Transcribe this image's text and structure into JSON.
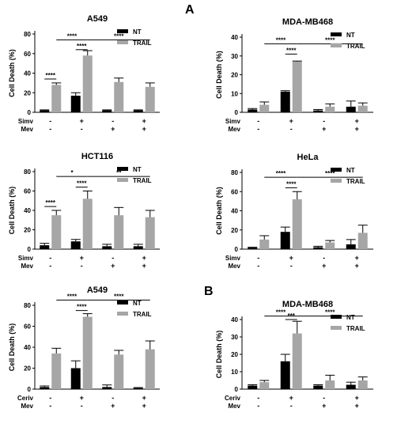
{
  "panel_labels": {
    "A": "A",
    "B": "B"
  },
  "colors": {
    "nt": "#000000",
    "trail": "#a6a6a6",
    "axis": "#000000"
  },
  "chart_data": [
    {
      "type": "bar",
      "title": "A549",
      "ylabel": "Cell Death (%)",
      "ylim": [
        0,
        80
      ],
      "yticks": [
        0,
        20,
        40,
        60,
        80
      ],
      "row_labels": [
        "Simv",
        "Mev"
      ],
      "conditions": [
        [
          "-",
          "-"
        ],
        [
          "+",
          "-"
        ],
        [
          "-",
          "+"
        ],
        [
          "+",
          "+"
        ]
      ],
      "legend": "top-right",
      "series": [
        {
          "name": "NT",
          "values": [
            2,
            17,
            2,
            2
          ],
          "errors": [
            0.5,
            3,
            0.5,
            0.5
          ]
        },
        {
          "name": "TRAIL",
          "values": [
            28,
            58,
            31,
            26
          ],
          "errors": [
            2,
            5,
            4,
            4
          ]
        }
      ],
      "sig_lines": [
        {
          "label": "****",
          "from": "0:NT",
          "to": "0:TRAIL",
          "y": 34
        },
        {
          "label": "****",
          "from": "1:NT",
          "to": "1:TRAIL",
          "y": 64
        },
        {
          "label": "****",
          "from": "0:TRAIL",
          "to": "1:TRAIL",
          "y": 74
        },
        {
          "label": "****",
          "from": "1:TRAIL",
          "to": "3:TRAIL",
          "y": 74
        }
      ]
    },
    {
      "type": "bar",
      "title": "MDA-MB468",
      "ylabel": "Cell Death (%)",
      "ylim": [
        0,
        40
      ],
      "yticks": [
        0,
        10,
        20,
        30,
        40
      ],
      "row_labels": [
        "Simv",
        "Mev"
      ],
      "conditions": [
        [
          "-",
          "-"
        ],
        [
          "+",
          "-"
        ],
        [
          "-",
          "+"
        ],
        [
          "+",
          "+"
        ]
      ],
      "legend": "top-right",
      "series": [
        {
          "name": "NT",
          "values": [
            1.5,
            11,
            1,
            3
          ],
          "errors": [
            0.5,
            0.5,
            0.5,
            3
          ]
        },
        {
          "name": "TRAIL",
          "values": [
            4,
            27,
            3,
            3.5
          ],
          "errors": [
            1.5,
            0.3,
            1.5,
            1.5
          ]
        }
      ],
      "sig_lines": [
        {
          "label": "****",
          "from": "1:NT",
          "to": "1:TRAIL",
          "y": 31
        },
        {
          "label": "****",
          "from": "0:TRAIL",
          "to": "1:TRAIL",
          "y": 36.5
        },
        {
          "label": "****",
          "from": "1:TRAIL",
          "to": "3:TRAIL",
          "y": 36.5
        }
      ]
    },
    {
      "type": "bar",
      "title": "HCT116",
      "ylabel": "Cell Death (%)",
      "ylim": [
        0,
        80
      ],
      "yticks": [
        0,
        20,
        40,
        60,
        80
      ],
      "row_labels": [
        "Simv",
        "Mev"
      ],
      "conditions": [
        [
          "-",
          "-"
        ],
        [
          "+",
          "-"
        ],
        [
          "-",
          "+"
        ],
        [
          "+",
          "+"
        ]
      ],
      "legend": "top-right",
      "series": [
        {
          "name": "NT",
          "values": [
            4,
            8,
            3,
            3
          ],
          "errors": [
            2,
            2,
            2,
            2
          ]
        },
        {
          "name": "TRAIL",
          "values": [
            35,
            52,
            35,
            33
          ],
          "errors": [
            5,
            8,
            8,
            7
          ]
        }
      ],
      "sig_lines": [
        {
          "label": "****",
          "from": "0:NT",
          "to": "0:TRAIL",
          "y": 44
        },
        {
          "label": "****",
          "from": "1:NT",
          "to": "1:TRAIL",
          "y": 64
        },
        {
          "label": "*",
          "from": "0:TRAIL",
          "to": "1:TRAIL",
          "y": 75
        },
        {
          "label": "**",
          "from": "1:TRAIL",
          "to": "3:TRAIL",
          "y": 75
        }
      ]
    },
    {
      "type": "bar",
      "title": "HeLa",
      "ylabel": "Cell Death (%)",
      "ylim": [
        0,
        80
      ],
      "yticks": [
        0,
        20,
        40,
        60,
        80
      ],
      "row_labels": [
        "Simv",
        "Mev"
      ],
      "conditions": [
        [
          "-",
          "-"
        ],
        [
          "+",
          "-"
        ],
        [
          "-",
          "+"
        ],
        [
          "+",
          "+"
        ]
      ],
      "legend": "top-right",
      "series": [
        {
          "name": "NT",
          "values": [
            1.5,
            18,
            2,
            5
          ],
          "errors": [
            0.5,
            5,
            1,
            5
          ]
        },
        {
          "name": "TRAIL",
          "values": [
            10,
            52,
            7,
            17
          ],
          "errors": [
            4,
            8,
            2,
            8
          ]
        }
      ],
      "sig_lines": [
        {
          "label": "****",
          "from": "1:NT",
          "to": "1:TRAIL",
          "y": 64
        },
        {
          "label": "****",
          "from": "0:TRAIL",
          "to": "1:TRAIL",
          "y": 75
        },
        {
          "label": "****",
          "from": "1:TRAIL",
          "to": "3:TRAIL",
          "y": 75
        }
      ]
    },
    {
      "type": "bar",
      "title": "A549",
      "ylabel": "Cell Death (%)",
      "ylim": [
        0,
        80
      ],
      "yticks": [
        0,
        20,
        40,
        60,
        80
      ],
      "row_labels": [
        "Ceriv",
        "Mev"
      ],
      "conditions": [
        [
          "-",
          "-"
        ],
        [
          "+",
          "-"
        ],
        [
          "-",
          "+"
        ],
        [
          "+",
          "+"
        ]
      ],
      "legend": "top-right",
      "series": [
        {
          "name": "NT",
          "values": [
            2,
            20,
            2,
            1
          ],
          "errors": [
            1,
            7,
            2,
            0.5
          ]
        },
        {
          "name": "TRAIL",
          "values": [
            34,
            69,
            33,
            38
          ],
          "errors": [
            5,
            3,
            4,
            8
          ]
        }
      ],
      "sig_lines": [
        {
          "label": "****",
          "from": "1:NT",
          "to": "1:TRAIL",
          "y": 75
        },
        {
          "label": "****",
          "from": "0:TRAIL",
          "to": "1:TRAIL",
          "y": 85
        },
        {
          "label": "****",
          "from": "1:TRAIL",
          "to": "3:TRAIL",
          "y": 85
        }
      ]
    },
    {
      "type": "bar",
      "title": "MDA-MB468",
      "ylabel": "Cell Death (%)",
      "ylim": [
        0,
        40
      ],
      "yticks": [
        0,
        10,
        20,
        30,
        40
      ],
      "row_labels": [
        "Ceriv",
        "Mev"
      ],
      "conditions": [
        [
          "-",
          "-"
        ],
        [
          "+",
          "-"
        ],
        [
          "-",
          "+"
        ],
        [
          "+",
          "+"
        ]
      ],
      "legend": "top-right",
      "series": [
        {
          "name": "NT",
          "values": [
            2,
            16,
            2,
            2.5
          ],
          "errors": [
            0.5,
            4,
            0.5,
            1.5
          ]
        },
        {
          "name": "TRAIL",
          "values": [
            4,
            32,
            5,
            5
          ],
          "errors": [
            1,
            7,
            3,
            2
          ]
        }
      ],
      "sig_lines": [
        {
          "label": "***",
          "from": "1:NT",
          "to": "1:TRAIL",
          "y": 40
        },
        {
          "label": "****",
          "from": "0:TRAIL",
          "to": "1:TRAIL",
          "y": 42
        },
        {
          "label": "****",
          "from": "1:TRAIL",
          "to": "3:TRAIL",
          "y": 42
        }
      ]
    }
  ]
}
